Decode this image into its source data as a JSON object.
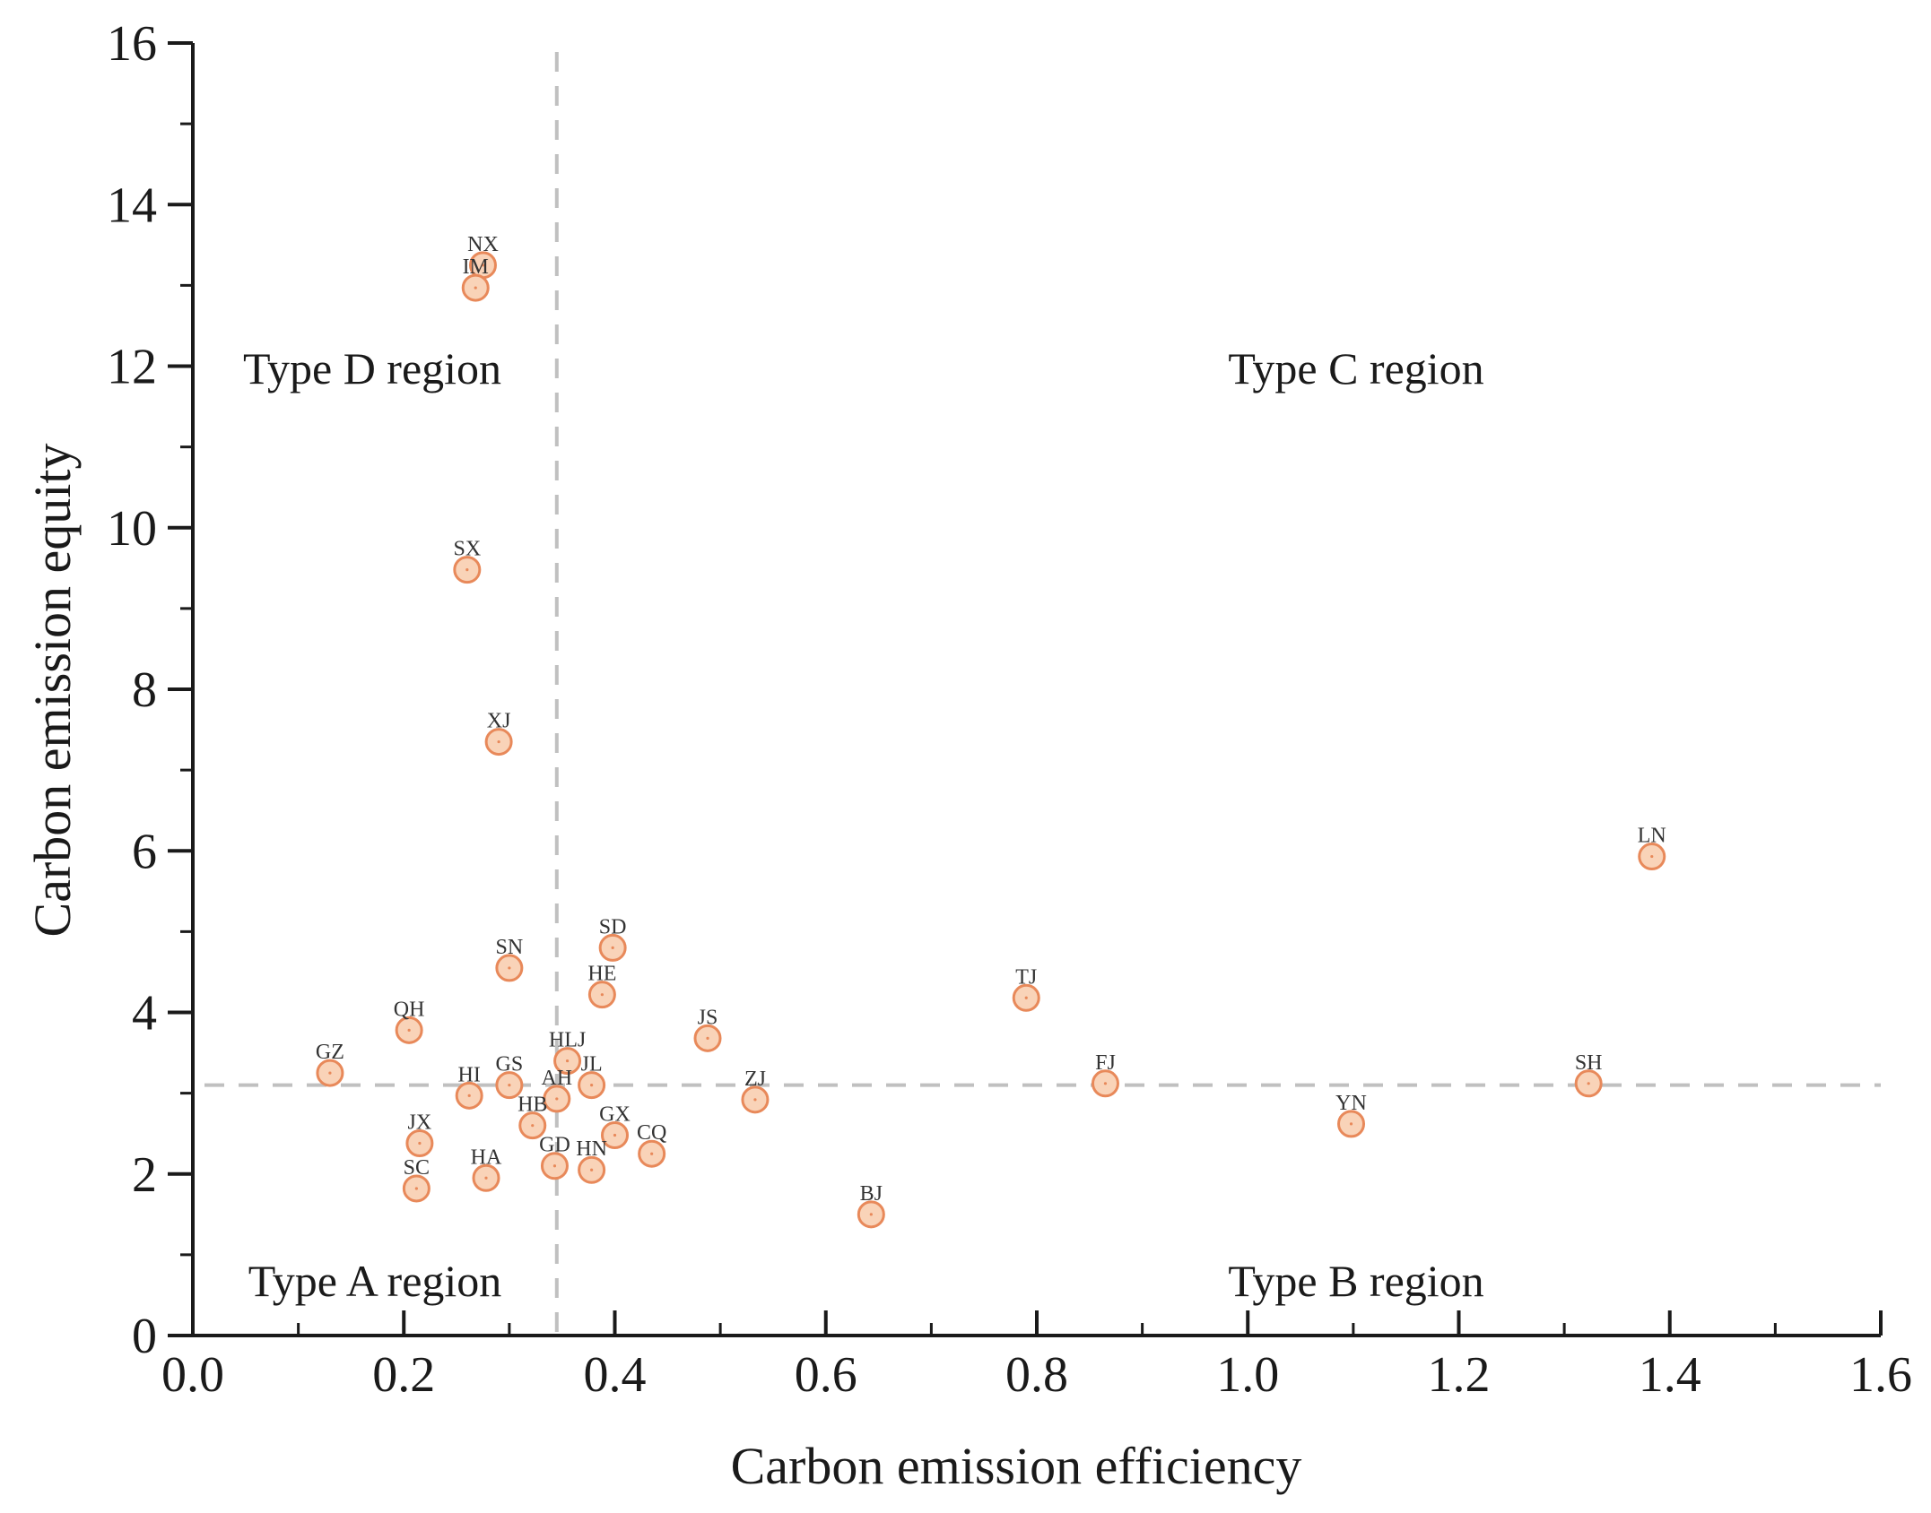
{
  "chart_data": {
    "type": "scatter",
    "xlabel": "Carbon emission efficiency",
    "ylabel": "Carbon emission equity",
    "xlim": [
      0.0,
      1.6
    ],
    "ylim": [
      0,
      16
    ],
    "x_ticks": [
      "0.0",
      "0.2",
      "0.4",
      "0.6",
      "0.8",
      "1.0",
      "1.2",
      "1.4",
      "1.6"
    ],
    "y_ticks": [
      "0",
      "2",
      "4",
      "6",
      "8",
      "10",
      "12",
      "14",
      "16"
    ],
    "threshold_x": 0.345,
    "threshold_y": 3.1,
    "regions": {
      "top_left": "Type D region",
      "top_right": "Type C region",
      "bottom_left": "Type A region",
      "bottom_right": "Type B region"
    },
    "colors": {
      "marker_fill": "#f9d3b8",
      "marker_stroke": "#e8895a",
      "threshold": "#c0c0c0",
      "axis": "#1a1a1a"
    },
    "points": [
      {
        "label": "NX",
        "x": 0.275,
        "y": 13.25
      },
      {
        "label": "IM",
        "x": 0.268,
        "y": 12.97
      },
      {
        "label": "SX",
        "x": 0.26,
        "y": 9.48
      },
      {
        "label": "XJ",
        "x": 0.29,
        "y": 7.35
      },
      {
        "label": "LN",
        "x": 1.383,
        "y": 5.93
      },
      {
        "label": "SD",
        "x": 0.398,
        "y": 4.8
      },
      {
        "label": "SN",
        "x": 0.3,
        "y": 4.55
      },
      {
        "label": "HE",
        "x": 0.388,
        "y": 4.22
      },
      {
        "label": "TJ",
        "x": 0.79,
        "y": 4.18
      },
      {
        "label": "QH",
        "x": 0.205,
        "y": 3.78
      },
      {
        "label": "JS",
        "x": 0.488,
        "y": 3.68
      },
      {
        "label": "HLJ",
        "x": 0.355,
        "y": 3.4
      },
      {
        "label": "GZ",
        "x": 0.13,
        "y": 3.25
      },
      {
        "label": "JL",
        "x": 0.378,
        "y": 3.1
      },
      {
        "label": "GS",
        "x": 0.3,
        "y": 3.1
      },
      {
        "label": "FJ",
        "x": 0.865,
        "y": 3.12
      },
      {
        "label": "SH",
        "x": 1.323,
        "y": 3.12
      },
      {
        "label": "HI",
        "x": 0.262,
        "y": 2.97
      },
      {
        "label": "AH",
        "x": 0.345,
        "y": 2.93
      },
      {
        "label": "ZJ",
        "x": 0.533,
        "y": 2.92
      },
      {
        "label": "YN",
        "x": 1.098,
        "y": 2.62
      },
      {
        "label": "HB",
        "x": 0.322,
        "y": 2.6
      },
      {
        "label": "GX",
        "x": 0.4,
        "y": 2.48
      },
      {
        "label": "JX",
        "x": 0.215,
        "y": 2.38
      },
      {
        "label": "CQ",
        "x": 0.435,
        "y": 2.25
      },
      {
        "label": "GD",
        "x": 0.343,
        "y": 2.1
      },
      {
        "label": "HN",
        "x": 0.378,
        "y": 2.05
      },
      {
        "label": "HA",
        "x": 0.278,
        "y": 1.95
      },
      {
        "label": "SC",
        "x": 0.212,
        "y": 1.82
      },
      {
        "label": "BJ",
        "x": 0.643,
        "y": 1.5
      }
    ]
  }
}
